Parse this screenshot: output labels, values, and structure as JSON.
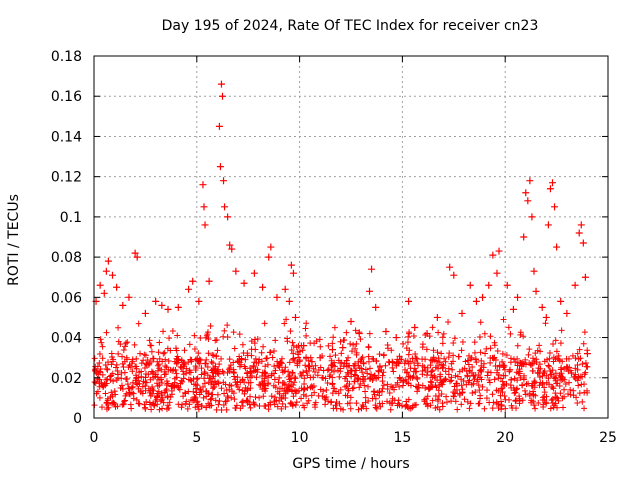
{
  "chart_data": {
    "type": "scatter",
    "title": "Day 195 of 2024, Rate Of TEC Index for receiver cn23",
    "xlabel": "GPS time / hours",
    "ylabel": "ROTI / TECUs",
    "xlim": [
      0,
      25
    ],
    "ylim": [
      0,
      0.18
    ],
    "x_ticks": [
      "0",
      "5",
      "10",
      "15",
      "20",
      "25"
    ],
    "y_ticks": [
      "0",
      "0.02",
      "0.04",
      "0.06",
      "0.08",
      "0.1",
      "0.12",
      "0.14",
      "0.16",
      "0.18"
    ],
    "grid": true,
    "marker": "+",
    "series": [
      {
        "color": "#ff0000",
        "points": [
          [
            0.1,
            0.058
          ],
          [
            0.3,
            0.066
          ],
          [
            0.5,
            0.062
          ],
          [
            0.6,
            0.073
          ],
          [
            0.7,
            0.078
          ],
          [
            0.9,
            0.071
          ],
          [
            1.1,
            0.065
          ],
          [
            1.4,
            0.056
          ],
          [
            1.7,
            0.06
          ],
          [
            2.0,
            0.082
          ],
          [
            2.1,
            0.08
          ],
          [
            2.5,
            0.052
          ],
          [
            3.0,
            0.058
          ],
          [
            3.3,
            0.056
          ],
          [
            3.6,
            0.054
          ],
          [
            4.1,
            0.055
          ],
          [
            4.6,
            0.064
          ],
          [
            4.8,
            0.068
          ],
          [
            5.1,
            0.058
          ],
          [
            5.3,
            0.116
          ],
          [
            5.35,
            0.105
          ],
          [
            5.4,
            0.096
          ],
          [
            5.6,
            0.068
          ],
          [
            6.1,
            0.145
          ],
          [
            6.15,
            0.125
          ],
          [
            6.2,
            0.166
          ],
          [
            6.25,
            0.16
          ],
          [
            6.3,
            0.118
          ],
          [
            6.35,
            0.105
          ],
          [
            6.5,
            0.1
          ],
          [
            6.6,
            0.086
          ],
          [
            6.7,
            0.084
          ],
          [
            6.9,
            0.073
          ],
          [
            7.3,
            0.067
          ],
          [
            7.8,
            0.072
          ],
          [
            8.2,
            0.065
          ],
          [
            8.5,
            0.08
          ],
          [
            8.6,
            0.085
          ],
          [
            8.9,
            0.06
          ],
          [
            9.3,
            0.064
          ],
          [
            9.5,
            0.058
          ],
          [
            9.6,
            0.076
          ],
          [
            9.7,
            0.072
          ],
          [
            9.8,
            0.05
          ],
          [
            10.2,
            0.036
          ],
          [
            10.6,
            0.028
          ],
          [
            11.0,
            0.03
          ],
          [
            11.6,
            0.034
          ],
          [
            12.1,
            0.035
          ],
          [
            12.5,
            0.048
          ],
          [
            12.9,
            0.042
          ],
          [
            13.4,
            0.063
          ],
          [
            13.5,
            0.074
          ],
          [
            13.7,
            0.055
          ],
          [
            14.2,
            0.043
          ],
          [
            14.7,
            0.04
          ],
          [
            15.3,
            0.058
          ],
          [
            15.6,
            0.045
          ],
          [
            16.2,
            0.042
          ],
          [
            16.7,
            0.05
          ],
          [
            17.3,
            0.075
          ],
          [
            17.5,
            0.071
          ],
          [
            17.9,
            0.052
          ],
          [
            18.3,
            0.066
          ],
          [
            18.6,
            0.058
          ],
          [
            18.9,
            0.06
          ],
          [
            19.2,
            0.066
          ],
          [
            19.4,
            0.081
          ],
          [
            19.6,
            0.072
          ],
          [
            19.7,
            0.083
          ],
          [
            20.1,
            0.066
          ],
          [
            20.4,
            0.054
          ],
          [
            20.6,
            0.06
          ],
          [
            20.9,
            0.09
          ],
          [
            21.0,
            0.112
          ],
          [
            21.1,
            0.108
          ],
          [
            21.2,
            0.118
          ],
          [
            21.3,
            0.1
          ],
          [
            21.4,
            0.073
          ],
          [
            21.5,
            0.063
          ],
          [
            21.8,
            0.055
          ],
          [
            22.0,
            0.05
          ],
          [
            22.1,
            0.096
          ],
          [
            22.2,
            0.114
          ],
          [
            22.3,
            0.117
          ],
          [
            22.4,
            0.105
          ],
          [
            22.5,
            0.085
          ],
          [
            22.7,
            0.058
          ],
          [
            23.0,
            0.052
          ],
          [
            23.4,
            0.066
          ],
          [
            23.6,
            0.092
          ],
          [
            23.7,
            0.096
          ],
          [
            23.8,
            0.087
          ],
          [
            23.9,
            0.07
          ],
          [
            24.0,
            0.032
          ]
        ]
      }
    ]
  }
}
